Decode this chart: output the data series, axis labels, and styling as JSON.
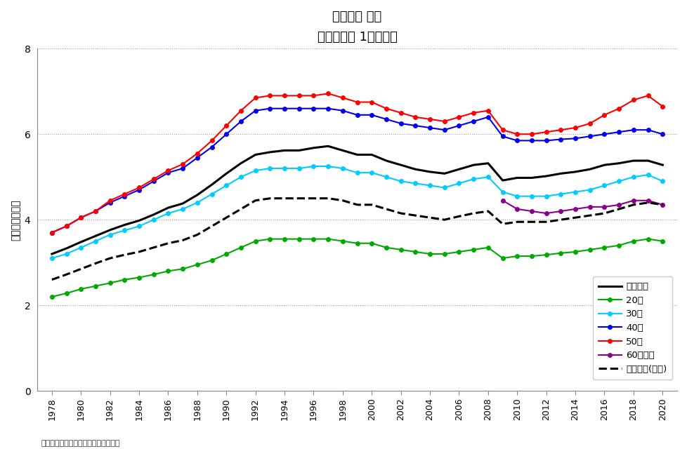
{
  "title": "平均給与 男性\n年齢階層別 1年勤続者",
  "ylabel": "金額［百万円］",
  "footnote": "「民間給与実態統計調査」を基に作成",
  "xlim": [
    1977,
    2021
  ],
  "ylim": [
    0,
    8
  ],
  "yticks": [
    0,
    2,
    4,
    6,
    8
  ],
  "years": [
    1978,
    1979,
    1980,
    1981,
    1982,
    1983,
    1984,
    1985,
    1986,
    1987,
    1988,
    1989,
    1990,
    1991,
    1992,
    1993,
    1994,
    1995,
    1996,
    1997,
    1998,
    1999,
    2000,
    2001,
    2002,
    2003,
    2004,
    2005,
    2006,
    2007,
    2008,
    2009,
    2010,
    2011,
    2012,
    2013,
    2014,
    2015,
    2016,
    2017,
    2018,
    2019,
    2020
  ],
  "series": {
    "男性合計": {
      "color": "#000000",
      "linestyle": "-",
      "linewidth": 2.2,
      "marker": null,
      "markersize": 0,
      "values": [
        3.2,
        3.33,
        3.48,
        3.62,
        3.76,
        3.88,
        3.98,
        4.12,
        4.28,
        4.38,
        4.58,
        4.82,
        5.08,
        5.32,
        5.52,
        5.58,
        5.62,
        5.62,
        5.68,
        5.72,
        5.62,
        5.52,
        5.52,
        5.38,
        5.28,
        5.18,
        5.12,
        5.08,
        5.18,
        5.28,
        5.32,
        4.92,
        4.98,
        4.98,
        5.02,
        5.08,
        5.12,
        5.18,
        5.28,
        5.32,
        5.38,
        5.38,
        5.28
      ]
    },
    "20代": {
      "color": "#00AA00",
      "linestyle": "-",
      "linewidth": 1.5,
      "marker": "o",
      "markersize": 4,
      "values": [
        2.2,
        2.28,
        2.38,
        2.45,
        2.52,
        2.6,
        2.65,
        2.72,
        2.8,
        2.85,
        2.95,
        3.05,
        3.2,
        3.35,
        3.5,
        3.55,
        3.55,
        3.55,
        3.55,
        3.55,
        3.5,
        3.45,
        3.45,
        3.35,
        3.3,
        3.25,
        3.2,
        3.2,
        3.25,
        3.3,
        3.35,
        3.1,
        3.15,
        3.15,
        3.18,
        3.22,
        3.25,
        3.3,
        3.35,
        3.4,
        3.5,
        3.55,
        3.5
      ]
    },
    "30代": {
      "color": "#00CCFF",
      "linestyle": "-",
      "linewidth": 1.5,
      "marker": "o",
      "markersize": 4,
      "values": [
        3.1,
        3.2,
        3.35,
        3.5,
        3.65,
        3.75,
        3.85,
        4.0,
        4.15,
        4.25,
        4.4,
        4.6,
        4.8,
        5.0,
        5.15,
        5.2,
        5.2,
        5.2,
        5.25,
        5.25,
        5.2,
        5.1,
        5.1,
        5.0,
        4.9,
        4.85,
        4.8,
        4.75,
        4.85,
        4.95,
        5.0,
        4.65,
        4.55,
        4.55,
        4.55,
        4.6,
        4.65,
        4.7,
        4.8,
        4.9,
        5.0,
        5.05,
        4.9
      ]
    },
    "40代": {
      "color": "#0000EE",
      "linestyle": "-",
      "linewidth": 1.5,
      "marker": "o",
      "markersize": 4,
      "values": [
        3.7,
        3.85,
        4.05,
        4.2,
        4.4,
        4.55,
        4.7,
        4.9,
        5.1,
        5.2,
        5.45,
        5.7,
        6.0,
        6.3,
        6.55,
        6.6,
        6.6,
        6.6,
        6.6,
        6.6,
        6.55,
        6.45,
        6.45,
        6.35,
        6.25,
        6.2,
        6.15,
        6.1,
        6.2,
        6.3,
        6.4,
        5.95,
        5.85,
        5.85,
        5.85,
        5.88,
        5.9,
        5.95,
        6.0,
        6.05,
        6.1,
        6.1,
        6.0
      ]
    },
    "50代": {
      "color": "#FF0000",
      "linestyle": "-",
      "linewidth": 1.5,
      "marker": "o",
      "markersize": 4,
      "values": [
        3.7,
        3.85,
        4.05,
        4.2,
        4.45,
        4.6,
        4.75,
        4.95,
        5.15,
        5.3,
        5.55,
        5.85,
        6.2,
        6.55,
        6.85,
        6.9,
        6.9,
        6.9,
        6.9,
        6.95,
        6.85,
        6.75,
        6.75,
        6.6,
        6.5,
        6.4,
        6.35,
        6.3,
        6.4,
        6.5,
        6.55,
        6.1,
        6.0,
        6.0,
        6.05,
        6.1,
        6.15,
        6.25,
        6.45,
        6.6,
        6.8,
        6.9,
        6.65
      ]
    },
    "60歳以上": {
      "color": "#8B008B",
      "linestyle": "-",
      "linewidth": 1.5,
      "marker": "o",
      "markersize": 4,
      "values": [
        null,
        null,
        null,
        null,
        null,
        null,
        null,
        null,
        null,
        null,
        null,
        null,
        null,
        null,
        null,
        null,
        null,
        null,
        null,
        null,
        null,
        null,
        null,
        null,
        null,
        null,
        null,
        null,
        null,
        null,
        null,
        4.45,
        4.25,
        4.2,
        4.15,
        4.2,
        4.25,
        4.3,
        4.3,
        4.35,
        4.45,
        4.45,
        4.35
      ]
    },
    "男女合計（参考）": {
      "color": "#000000",
      "linestyle": "--",
      "linewidth": 2.2,
      "marker": null,
      "markersize": 0,
      "values": [
        2.6,
        2.72,
        2.85,
        2.98,
        3.1,
        3.18,
        3.25,
        3.35,
        3.45,
        3.52,
        3.65,
        3.85,
        4.05,
        4.25,
        4.45,
        4.5,
        4.5,
        4.5,
        4.5,
        4.5,
        4.45,
        4.35,
        4.35,
        4.25,
        4.15,
        4.1,
        4.05,
        4.0,
        4.08,
        4.15,
        4.2,
        3.9,
        3.95,
        3.95,
        3.95,
        4.0,
        4.05,
        4.1,
        4.15,
        4.25,
        4.35,
        4.4,
        4.35
      ]
    }
  },
  "legend_order": [
    "男性合計",
    "20代",
    "30代",
    "40代",
    "50代",
    "60歳以上",
    "男女合計（参考）"
  ],
  "legend_labels": [
    "男性合計",
    "20代",
    "30代",
    "40代",
    "50代",
    "60歳以上",
    "男女合計(参考)"
  ]
}
